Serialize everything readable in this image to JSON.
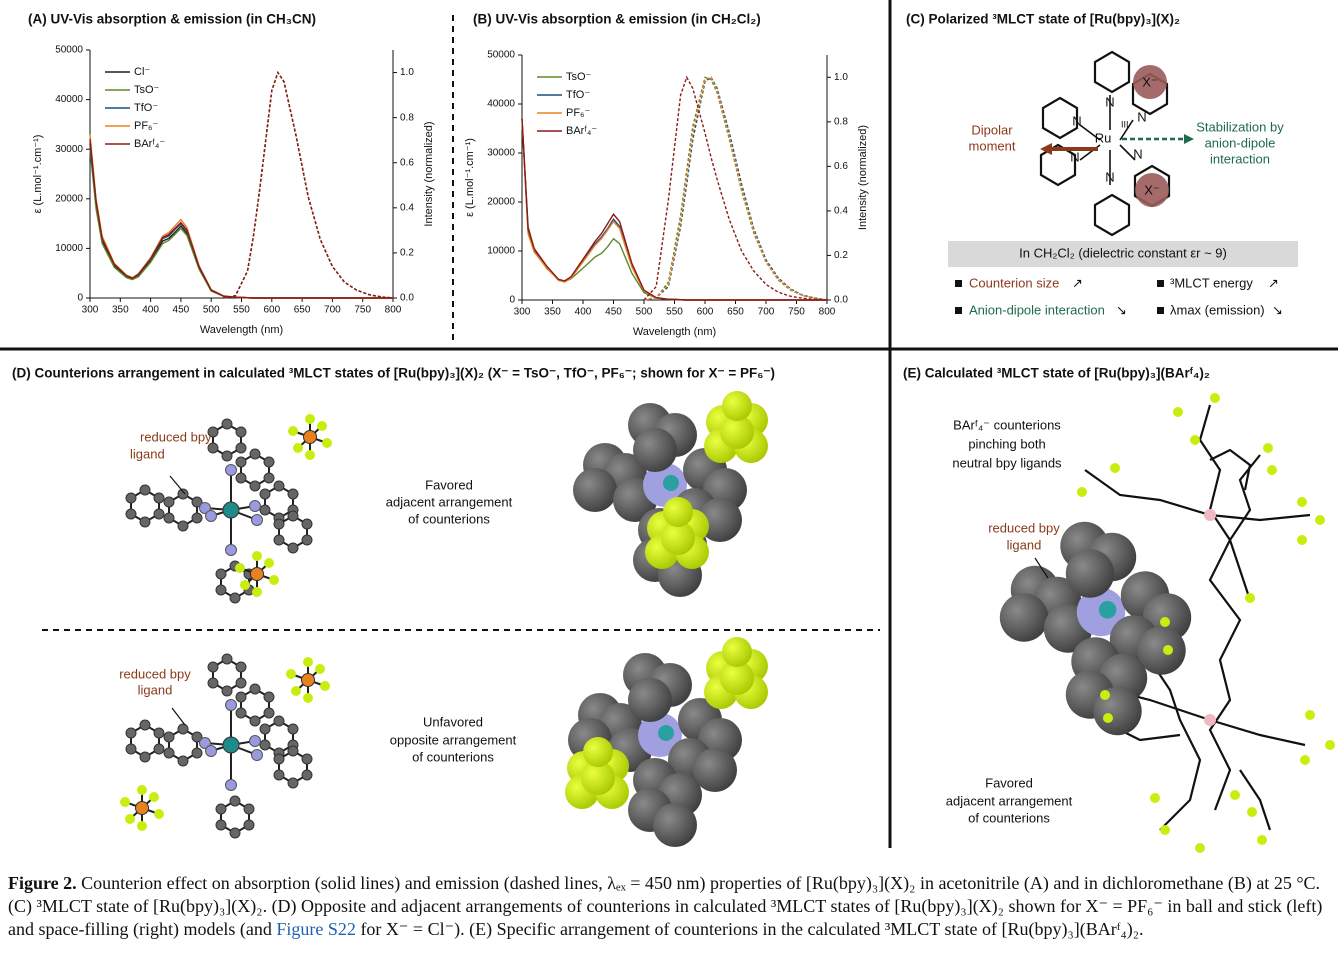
{
  "chart_data": [
    {
      "type": "line",
      "title": "(A) UV-Vis absorption & emission (in CH₃CN)",
      "x_label": "Wavelength (nm)",
      "y_label": "ε (L.mol⁻¹.cm⁻¹)",
      "y2_label": "Intensity (normalized)",
      "xlim": [
        300,
        800
      ],
      "xticks": [
        300,
        350,
        400,
        450,
        500,
        550,
        600,
        650,
        700,
        750,
        800
      ],
      "ylim": [
        0,
        50000
      ],
      "yticks": [
        0,
        10000,
        20000,
        30000,
        40000,
        50000
      ],
      "y2lim": [
        0,
        1.1
      ],
      "y2ticks": [
        {
          "value": 0,
          "label": "0.0"
        },
        0.2,
        0.4,
        0.6,
        0.8,
        {
          "value": 1,
          "label": "1.0"
        }
      ],
      "legend": "top-left",
      "x": [
        300,
        310,
        320,
        340,
        360,
        370,
        380,
        400,
        420,
        430,
        440,
        450,
        460,
        480,
        500,
        520,
        540,
        560,
        570,
        580,
        600,
        610,
        620,
        640,
        660,
        680,
        700,
        720,
        740,
        760,
        780,
        800
      ],
      "series": [
        {
          "name": "Cl⁻",
          "color": "#222222",
          "values": [
            31000,
            19000,
            11500,
            6500,
            4300,
            3900,
            4500,
            7500,
            11500,
            12000,
            13200,
            14500,
            13000,
            6000,
            1500,
            400,
            150,
            50,
            0,
            0,
            0,
            0,
            0,
            0,
            0,
            0,
            0,
            0,
            0,
            0,
            0,
            0
          ],
          "emission": [
            null,
            null,
            null,
            null,
            null,
            null,
            null,
            null,
            null,
            null,
            null,
            null,
            null,
            null,
            null,
            0,
            0.01,
            0.12,
            0.28,
            0.48,
            0.92,
            1.0,
            0.96,
            0.72,
            0.45,
            0.26,
            0.14,
            0.07,
            0.035,
            0.015,
            0.005,
            0
          ]
        },
        {
          "name": "TsO⁻",
          "color": "#5b8c2a",
          "values": [
            30000,
            18000,
            11000,
            6200,
            4100,
            3700,
            4300,
            7200,
            11000,
            11600,
            12800,
            14000,
            12600,
            5800,
            1400,
            400,
            150,
            50,
            0,
            0,
            0,
            0,
            0,
            0,
            0,
            0,
            0,
            0,
            0,
            0,
            0,
            0
          ],
          "emission": [
            null,
            null,
            null,
            null,
            null,
            null,
            null,
            null,
            null,
            null,
            null,
            null,
            null,
            null,
            null,
            0,
            0.01,
            0.12,
            0.28,
            0.48,
            0.92,
            1.0,
            0.96,
            0.72,
            0.45,
            0.26,
            0.14,
            0.07,
            0.035,
            0.015,
            0.005,
            0
          ]
        },
        {
          "name": "TfO⁻",
          "color": "#1f4e79",
          "values": [
            31000,
            19500,
            12000,
            6800,
            4400,
            4000,
            4700,
            7800,
            12000,
            12500,
            13800,
            15000,
            13500,
            6200,
            1600,
            400,
            150,
            50,
            0,
            0,
            0,
            0,
            0,
            0,
            0,
            0,
            0,
            0,
            0,
            0,
            0,
            0
          ],
          "emission": [
            null,
            null,
            null,
            null,
            null,
            null,
            null,
            null,
            null,
            null,
            null,
            null,
            null,
            null,
            null,
            0,
            0.01,
            0.12,
            0.28,
            0.48,
            0.92,
            1.0,
            0.96,
            0.72,
            0.45,
            0.26,
            0.14,
            0.07,
            0.035,
            0.015,
            0.005,
            0
          ]
        },
        {
          "name": "PF₆⁻",
          "color": "#e8822a",
          "values": [
            33000,
            20000,
            12500,
            7000,
            4600,
            4100,
            4900,
            8100,
            12500,
            13200,
            14500,
            15800,
            14200,
            6500,
            1700,
            450,
            150,
            50,
            0,
            0,
            0,
            0,
            0,
            0,
            0,
            0,
            0,
            0,
            0,
            0,
            0,
            0
          ],
          "emission": [
            null,
            null,
            null,
            null,
            null,
            null,
            null,
            null,
            null,
            null,
            null,
            null,
            null,
            null,
            null,
            0,
            0.01,
            0.12,
            0.28,
            0.48,
            0.92,
            1.0,
            0.96,
            0.72,
            0.45,
            0.26,
            0.14,
            0.07,
            0.035,
            0.015,
            0.005,
            0
          ]
        },
        {
          "name": "BArᶠ₄⁻",
          "color": "#8b1a1a",
          "values": [
            32000,
            19500,
            12000,
            6800,
            4500,
            4000,
            4800,
            7900,
            12200,
            12800,
            14000,
            15200,
            13700,
            6300,
            1600,
            400,
            150,
            50,
            0,
            0,
            0,
            0,
            0,
            0,
            0,
            0,
            0,
            0,
            0,
            0,
            0,
            0
          ],
          "emission": [
            null,
            null,
            null,
            null,
            null,
            null,
            null,
            null,
            null,
            null,
            null,
            null,
            null,
            null,
            null,
            0,
            0.01,
            0.12,
            0.28,
            0.48,
            0.92,
            1.0,
            0.96,
            0.72,
            0.45,
            0.26,
            0.14,
            0.07,
            0.035,
            0.015,
            0.005,
            0
          ]
        }
      ]
    },
    {
      "type": "line",
      "title": "(B) UV-Vis absorption & emission (in CH₂Cl₂)",
      "x_label": "Wavelength (nm)",
      "y_label": "ε (L.mol⁻¹.cm⁻¹)",
      "y2_label": "Intensity (normalized)",
      "xlim": [
        300,
        800
      ],
      "xticks": [
        300,
        350,
        400,
        450,
        500,
        550,
        600,
        650,
        700,
        750,
        800
      ],
      "ylim": [
        0,
        50000
      ],
      "yticks": [
        0,
        10000,
        20000,
        30000,
        40000,
        50000
      ],
      "y2lim": [
        0,
        1.1
      ],
      "y2ticks": [
        {
          "value": 0,
          "label": "0.0"
        },
        0.2,
        0.4,
        0.6,
        0.8,
        {
          "value": 1,
          "label": "1.0"
        }
      ],
      "legend": "top-left",
      "x": [
        300,
        310,
        320,
        340,
        360,
        370,
        380,
        400,
        420,
        430,
        440,
        450,
        460,
        480,
        500,
        520,
        540,
        560,
        570,
        580,
        600,
        610,
        620,
        640,
        660,
        680,
        700,
        720,
        740,
        760,
        780,
        800
      ],
      "series": [
        {
          "name": "TsO⁻",
          "color": "#5b8c2a",
          "values": [
            37000,
            15000,
            10500,
            6500,
            4200,
            3800,
            4300,
            6500,
            8800,
            9500,
            10800,
            12500,
            11500,
            5500,
            1500,
            400,
            150,
            50,
            0,
            0,
            0,
            0,
            0,
            0,
            0,
            0,
            0,
            0,
            0,
            0,
            0,
            0
          ],
          "emission": [
            null,
            null,
            null,
            null,
            null,
            null,
            null,
            null,
            null,
            null,
            null,
            null,
            null,
            null,
            0,
            0.01,
            0.08,
            0.38,
            0.58,
            0.78,
            1.0,
            0.99,
            0.93,
            0.72,
            0.49,
            0.3,
            0.17,
            0.09,
            0.045,
            0.02,
            0.008,
            0
          ]
        },
        {
          "name": "TfO⁻",
          "color": "#1f4e79",
          "values": [
            37000,
            14000,
            10000,
            6800,
            4000,
            3700,
            4500,
            8000,
            11500,
            12800,
            14500,
            16500,
            15000,
            7000,
            1800,
            450,
            150,
            50,
            0,
            0,
            0,
            0,
            0,
            0,
            0,
            0,
            0,
            0,
            0,
            0,
            0,
            0
          ],
          "emission": [
            null,
            null,
            null,
            null,
            null,
            null,
            null,
            null,
            null,
            null,
            null,
            null,
            null,
            null,
            0,
            0.01,
            0.06,
            0.33,
            0.52,
            0.72,
            0.98,
            1.0,
            0.95,
            0.75,
            0.52,
            0.32,
            0.18,
            0.1,
            0.05,
            0.022,
            0.009,
            0
          ]
        },
        {
          "name": "PF₆⁻",
          "color": "#e8822a",
          "values": [
            37000,
            13500,
            9800,
            6600,
            4000,
            3700,
            4400,
            7800,
            11200,
            12500,
            14200,
            16000,
            14600,
            6800,
            1800,
            450,
            150,
            50,
            0,
            0,
            0,
            0,
            0,
            0,
            0,
            0,
            0,
            0,
            0,
            0,
            0,
            0
          ],
          "emission": [
            null,
            null,
            null,
            null,
            null,
            null,
            null,
            null,
            null,
            null,
            null,
            null,
            null,
            null,
            0,
            0.01,
            0.07,
            0.35,
            0.55,
            0.75,
            0.99,
            1.0,
            0.94,
            0.73,
            0.5,
            0.31,
            0.17,
            0.095,
            0.048,
            0.021,
            0.008,
            0
          ]
        },
        {
          "name": "BArᶠ₄⁻",
          "color": "#8b1a1a",
          "values": [
            37000,
            14500,
            10500,
            7000,
            4200,
            3900,
            4700,
            8300,
            12000,
            13500,
            15500,
            17500,
            16000,
            7500,
            2000,
            500,
            150,
            50,
            0,
            0,
            0,
            0,
            0,
            0,
            0,
            0,
            0,
            0,
            0,
            0,
            0,
            0
          ],
          "emission": [
            null,
            null,
            null,
            null,
            null,
            null,
            null,
            null,
            null,
            null,
            null,
            null,
            null,
            null,
            0,
            0.06,
            0.45,
            0.92,
            1.0,
            0.95,
            0.75,
            0.64,
            0.54,
            0.36,
            0.22,
            0.13,
            0.07,
            0.035,
            0.017,
            0.008,
            0.003,
            0
          ]
        }
      ]
    }
  ],
  "panel_c": {
    "title": "(C) Polarized ³MLCT state of [Ru(bpy)₃](X)₂",
    "metal": "Ru",
    "oxidation": "III",
    "atom_labels": [
      "N",
      "N",
      "N",
      "N",
      "N",
      "N"
    ],
    "anions": [
      "X⁻",
      "X⁻"
    ],
    "dipole": [
      "Dipolar",
      "moment"
    ],
    "stabilization": [
      "Stabilization by",
      "anion-dipole",
      "interaction"
    ],
    "table_header": "In CH₂Cl₂ (dielectric constant εr ~ 9)",
    "rows": [
      [
        "Counterion size",
        "↗"
      ],
      [
        "Anion-dipole interaction",
        "↘"
      ]
    ],
    "rows_right": [
      [
        "³MLCT energy",
        "↗"
      ],
      [
        "λmax (emission)",
        "↘"
      ]
    ]
  },
  "panel_d": {
    "title": "(D) Counterions arrangement in calculated ³MLCT states of [Ru(bpy)₃](X)₂ (X⁻ = TsO⁻, TfO⁻, PF₆⁻; shown for X⁻ = PF₆⁻)",
    "top_ligand": [
      "reduced bpy",
      "ligand"
    ],
    "top_note": [
      "Favored",
      "adjacent arrangement",
      "of counterions"
    ],
    "bottom_ligand": [
      "reduced bpy",
      "ligand"
    ],
    "bottom_note": [
      "Unfavored",
      "opposite arrangement",
      "of counterions"
    ]
  },
  "panel_e": {
    "title": "(E) Calculated ³MLCT state of [Ru(bpy)₃](BArᶠ₄)₂",
    "counterions": [
      "BArᶠ₄⁻ counterions",
      "pinching both",
      "neutral bpy ligands"
    ],
    "ligand": [
      "reduced bpy",
      "ligand"
    ],
    "note": [
      "Favored",
      "adjacent arrangement",
      "of counterions"
    ]
  },
  "caption": {
    "label": "Figure 2.",
    "text_1": " Counterion effect on absorption (solid lines) and emission (dashed lines, λₑₓ = 450 nm) properties of [Ru(bpy)₃](X)₂ in acetonitrile (A) and in dichloromethane (B) at 25 °C. (C) ³MLCT state of [Ru(bpy)₃](X)₂. (D) Opposite and adjacent arrangements of counterions in calculated ³MLCT states of [Ru(bpy)₃](X)₂ shown for X⁻ = PF₆⁻ in ball and stick (left) and space-filling (right) models (and ",
    "link": "Figure S22",
    "text_2": " for X⁻ = Cl⁻). (E) Specific arrangement of counterions in the calculated ³MLCT state of [Ru(bpy)₃](BArᶠ₄)₂."
  }
}
